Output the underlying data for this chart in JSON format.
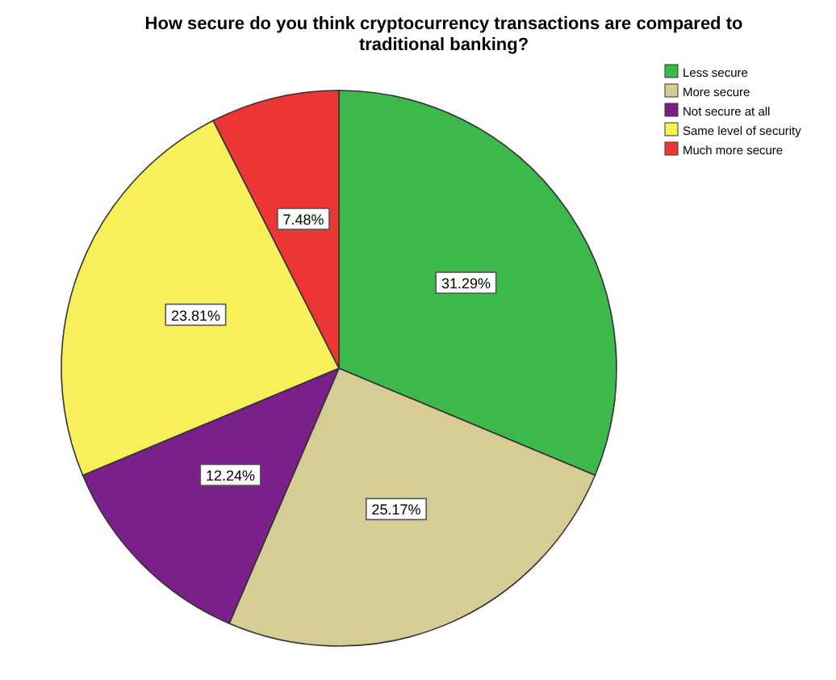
{
  "chart_data": {
    "type": "pie",
    "title": "How secure do you think cryptocurrency transactions are compared to traditional banking?",
    "categories": [
      "Less secure",
      "More secure",
      "Not secure at all",
      "Same level of security",
      "Much more secure"
    ],
    "values": [
      31.29,
      25.17,
      12.24,
      23.81,
      7.48
    ],
    "colors": [
      "#3cb94a",
      "#d6cc96",
      "#7b1f8a",
      "#f8f05a",
      "#ee3535"
    ],
    "value_labels": [
      "31.29%",
      "25.17%",
      "12.24%",
      "23.81%",
      "7.48%"
    ],
    "legend": "top right"
  }
}
